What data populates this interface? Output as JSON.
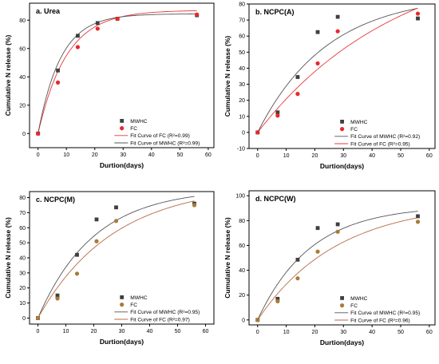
{
  "colors": {
    "mwhc": "#3f3f3f",
    "fc_red": "#e8282b",
    "fc_brown": "#a87b37",
    "fit_mwhc": "#555555",
    "fit_fc_red": "#e8373a",
    "fit_fc_brown": "#b86a45"
  },
  "chart_data": [
    {
      "type": "scatter",
      "title": "a. Urea",
      "xlabel": "Durtion(days)",
      "ylabel": "Cumulative N release (%)",
      "xlim": [
        -3,
        62
      ],
      "ylim": [
        -10,
        92
      ],
      "xticks": [
        0,
        10,
        20,
        30,
        40,
        50,
        60
      ],
      "yticks": [
        0,
        20,
        40,
        60,
        80
      ],
      "legend_position": "bottom-right",
      "series": [
        {
          "name": "MWHC",
          "marker": "square",
          "color": "mwhc",
          "x": [
            0,
            7,
            14,
            21,
            28,
            56
          ],
          "y": [
            0,
            44.5,
            69,
            78,
            81,
            83.5
          ]
        },
        {
          "name": "FC",
          "marker": "circle",
          "color": "fc_red",
          "x": [
            0,
            7,
            14,
            21,
            28,
            56
          ],
          "y": [
            0,
            36,
            61,
            74,
            81,
            84
          ]
        }
      ],
      "fits": [
        {
          "name": "Fit Curve of FC (R²=0.99)",
          "color": "fit_fc_red",
          "a": 87,
          "k": 0.1
        },
        {
          "name": "Fit Curve of MWHC (R²=0.99)",
          "color": "fit_mwhc",
          "a": 84.5,
          "k": 0.125
        }
      ]
    },
    {
      "type": "scatter",
      "title": "b. NCPC(A)",
      "xlabel": "Durtion(days)",
      "ylabel": "Cumulative N release (%)",
      "xlim": [
        -3,
        62
      ],
      "ylim": [
        -10,
        80
      ],
      "xticks": [
        0,
        10,
        20,
        30,
        40,
        50,
        60
      ],
      "yticks": [
        -10,
        0,
        10,
        20,
        30,
        40,
        50,
        60,
        70,
        80
      ],
      "legend_position": "bottom-right",
      "series": [
        {
          "name": "MWHC",
          "marker": "square",
          "color": "mwhc",
          "x": [
            0,
            7,
            14,
            21,
            28,
            56
          ],
          "y": [
            0,
            12.5,
            34.5,
            62.5,
            72,
            71
          ]
        },
        {
          "name": "FC",
          "marker": "circle",
          "color": "fc_red",
          "x": [
            0,
            7,
            14,
            21,
            28,
            56
          ],
          "y": [
            0,
            10.5,
            24,
            43,
            63,
            74
          ]
        }
      ],
      "fits": [
        {
          "name": "Fit Curve of MWHC (R²=0.92)",
          "color": "fit_mwhc",
          "a": 86,
          "k": 0.041
        },
        {
          "name": "Fit Curve of FC (R²=0.95)",
          "color": "fit_fc_red",
          "a": 115,
          "k": 0.02
        }
      ]
    },
    {
      "type": "scatter",
      "title": "c. NCPC(M)",
      "xlabel": "Durtion(days)",
      "ylabel": "Cumulative N release (%)",
      "xlim": [
        -3,
        63
      ],
      "ylim": [
        -4,
        84
      ],
      "xticks": [
        0,
        10,
        20,
        30,
        40,
        50,
        60
      ],
      "yticks": [
        0,
        10,
        20,
        30,
        40,
        50,
        60,
        70,
        80
      ],
      "legend_position": "bottom-right",
      "series": [
        {
          "name": "MWHC",
          "marker": "square",
          "color": "mwhc",
          "x": [
            0,
            7,
            14,
            21,
            28,
            56
          ],
          "y": [
            0,
            15,
            42,
            65.5,
            73.5,
            76
          ]
        },
        {
          "name": "FC",
          "marker": "circle",
          "color": "fc_brown",
          "x": [
            0,
            7,
            14,
            21,
            28,
            56
          ],
          "y": [
            0,
            13,
            29.5,
            51,
            64.5,
            75
          ]
        }
      ],
      "fits": [
        {
          "name": "Fit Curve of MWHC (R²=0.95)",
          "color": "fit_mwhc",
          "a": 86,
          "k": 0.05
        },
        {
          "name": "Fit Curve of FC (R²=0.97)",
          "color": "fit_fc_brown",
          "a": 89,
          "k": 0.037
        }
      ]
    },
    {
      "type": "scatter",
      "title": "d. NCPC(W)",
      "xlabel": "Durtion(days)",
      "ylabel": "Cumulative N release (%)",
      "xlim": [
        -3,
        62
      ],
      "ylim": [
        -4,
        104
      ],
      "xticks": [
        0,
        10,
        20,
        30,
        40,
        50,
        60
      ],
      "yticks": [
        0,
        20,
        40,
        60,
        80,
        100
      ],
      "legend_position": "bottom-right",
      "series": [
        {
          "name": "MWHC",
          "marker": "square",
          "color": "mwhc",
          "x": [
            0,
            7,
            14,
            21,
            28,
            56
          ],
          "y": [
            0,
            17,
            48.5,
            74,
            77,
            83.5
          ]
        },
        {
          "name": "FC",
          "marker": "circle",
          "color": "fc_brown",
          "x": [
            0,
            7,
            14,
            21,
            28,
            56
          ],
          "y": [
            0,
            15,
            33.5,
            55,
            71,
            79
          ]
        }
      ],
      "fits": [
        {
          "name": "Fit Curve of MWHC (R²=0.95)",
          "color": "fit_mwhc",
          "a": 92,
          "k": 0.054
        },
        {
          "name": "Fit Curve of FC (R²=0.96)",
          "color": "fit_fc_brown",
          "a": 95,
          "k": 0.036
        }
      ]
    }
  ]
}
